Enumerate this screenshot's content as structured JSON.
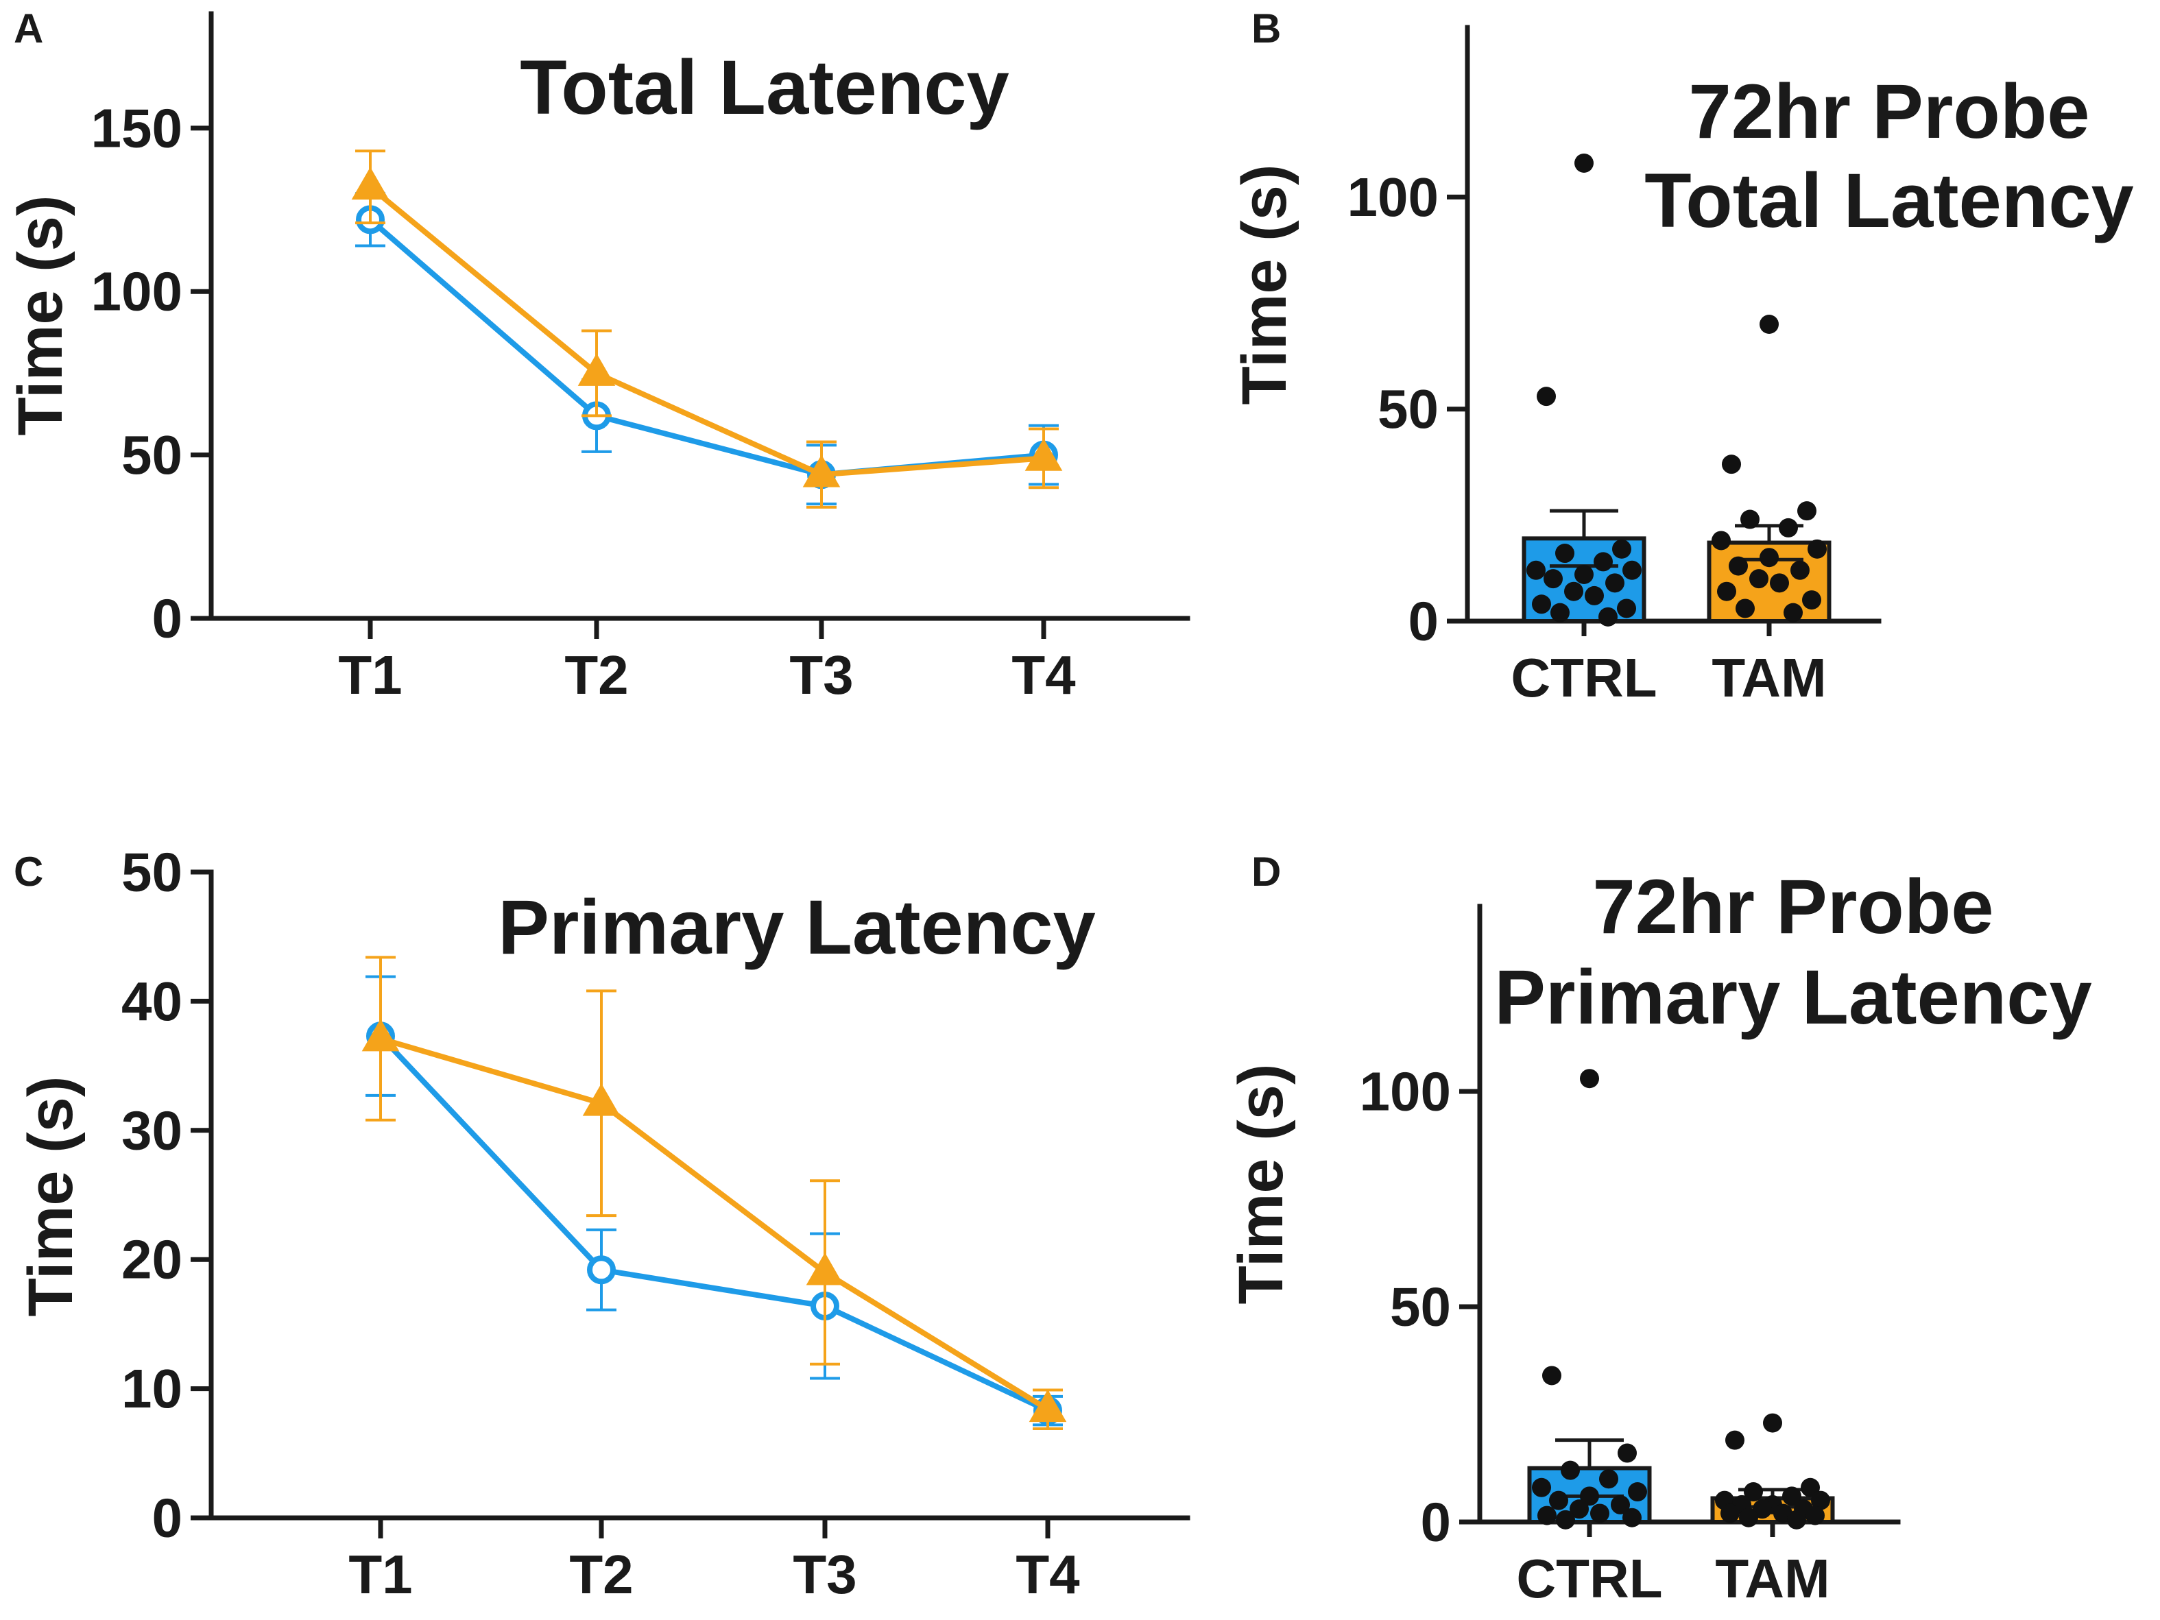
{
  "chart_data": [
    {
      "panel": "A",
      "type": "line",
      "title": "Total Latency",
      "ylabel": "Time (s)",
      "xlabel": "",
      "categories": [
        "T1",
        "T2",
        "T3",
        "T4"
      ],
      "ylim": [
        0,
        185
      ],
      "yticks": [
        0,
        50,
        100,
        150
      ],
      "series": [
        {
          "name": "CTRL",
          "color": "#1e9be8",
          "marker": "open-circle",
          "values": [
            122,
            62,
            44,
            50
          ],
          "err": [
            8,
            11,
            9,
            9
          ]
        },
        {
          "name": "TAM",
          "color": "#f5a31a",
          "marker": "filled-triangle",
          "values": [
            132,
            75,
            44,
            49
          ],
          "err": [
            11,
            13,
            10,
            9
          ]
        }
      ]
    },
    {
      "panel": "B",
      "type": "bar",
      "title": [
        "72hr Probe",
        "Total Latency"
      ],
      "ylabel": "Time (s)",
      "categories": [
        "CTRL",
        "TAM"
      ],
      "ylim": [
        0,
        140
      ],
      "yticks": [
        0,
        50,
        100
      ],
      "bar_colors": [
        "#1e9be8",
        "#f5a31a"
      ],
      "values": [
        19.5,
        18.5
      ],
      "err": [
        6.5,
        4
      ],
      "points": [
        [
          108,
          53,
          17,
          16,
          14,
          12,
          12,
          11,
          10,
          9,
          7,
          6,
          4,
          3,
          2,
          1
        ],
        [
          70,
          37,
          26,
          24,
          22,
          19,
          17,
          15,
          13,
          12,
          10,
          9,
          7,
          5,
          3,
          2
        ]
      ]
    },
    {
      "panel": "C",
      "type": "line",
      "title": "Primary Latency",
      "ylabel": "Time (s)",
      "xlabel": "",
      "categories": [
        "T1",
        "T2",
        "T3",
        "T4"
      ],
      "ylim": [
        0,
        50
      ],
      "yticks": [
        0,
        10,
        20,
        30,
        40,
        50
      ],
      "series": [
        {
          "name": "CTRL",
          "color": "#1e9be8",
          "marker": "open-circle",
          "values": [
            37.3,
            19.2,
            16.4,
            8.3
          ],
          "err": [
            4.6,
            3.1,
            5.6,
            1.1
          ]
        },
        {
          "name": "TAM",
          "color": "#f5a31a",
          "marker": "filled-triangle",
          "values": [
            37.1,
            32.1,
            19.0,
            8.4
          ],
          "err": [
            6.3,
            8.7,
            7.1,
            1.5
          ]
        }
      ]
    },
    {
      "panel": "D",
      "type": "bar",
      "title": [
        "72hr Probe",
        "Primary Latency"
      ],
      "ylabel": "Time (s)",
      "categories": [
        "CTRL",
        "TAM"
      ],
      "ylim": [
        0,
        143
      ],
      "yticks": [
        0,
        50,
        100
      ],
      "bar_colors": [
        "#1e9be8",
        "#f5a31a"
      ],
      "values": [
        12.5,
        5.5
      ],
      "err": [
        6.5,
        2
      ],
      "points": [
        [
          103,
          34,
          16,
          12,
          10,
          8,
          7,
          6,
          5,
          4,
          3,
          2,
          1.5,
          1,
          0.5
        ],
        [
          23,
          19,
          8,
          7,
          6,
          5,
          5,
          4,
          4,
          3,
          3,
          2,
          2,
          1.5,
          1,
          0.5
        ]
      ]
    }
  ]
}
